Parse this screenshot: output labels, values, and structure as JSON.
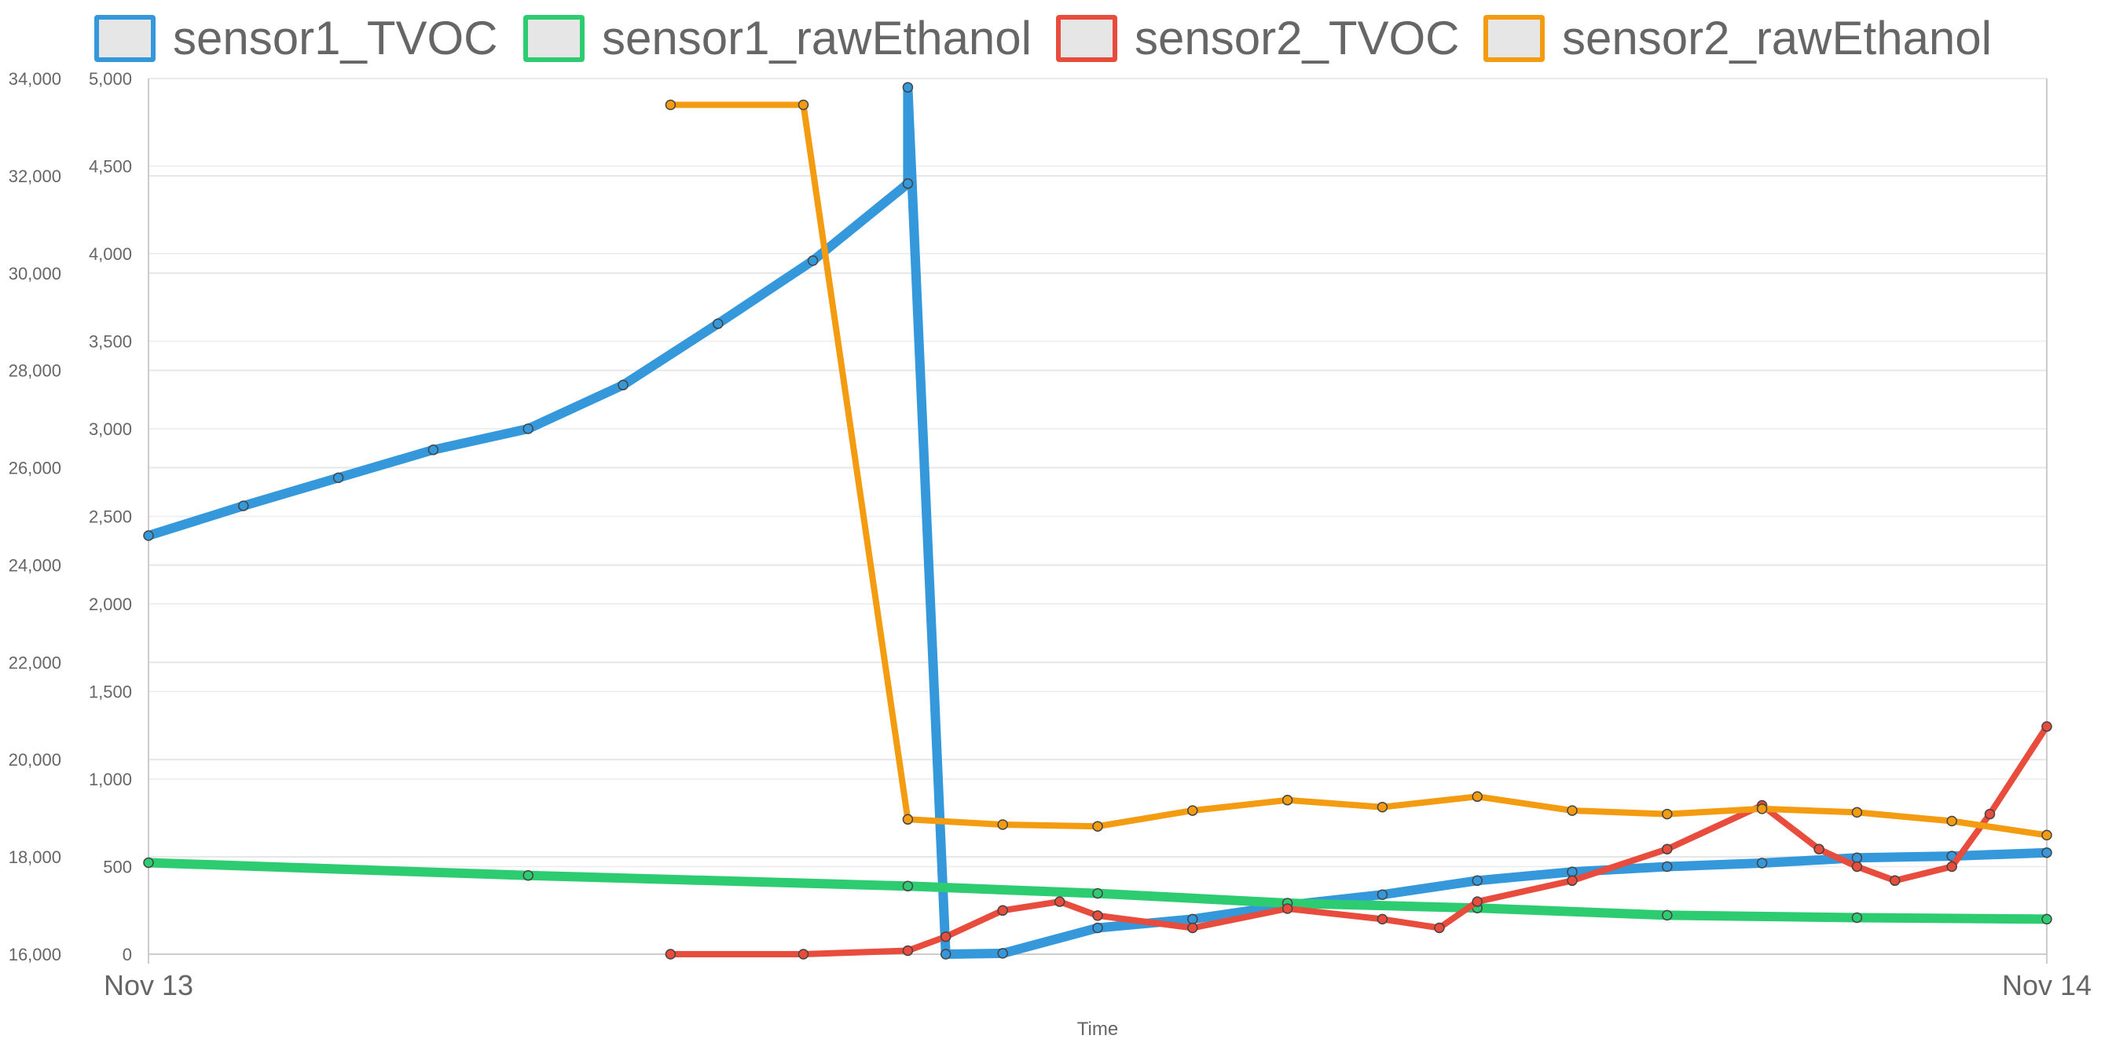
{
  "chart_data": {
    "type": "line",
    "legend_position": "top",
    "grid": true,
    "xlabel": "Time",
    "x_ticks": [
      "Nov 13",
      "Nov 14"
    ],
    "axes": {
      "left": {
        "min": 16000,
        "max": 34000,
        "ticks": [
          "16,000",
          "18,000",
          "20,000",
          "22,000",
          "24,000",
          "26,000",
          "28,000",
          "30,000",
          "32,000",
          "34,000"
        ]
      },
      "right": {
        "min": 0,
        "max": 5000,
        "ticks": [
          "0",
          "500",
          "1,000",
          "1,500",
          "2,000",
          "2,500",
          "3,000",
          "3,500",
          "4,000",
          "4,500",
          "5,000"
        ]
      }
    },
    "series": [
      {
        "name": "sensor1_TVOC",
        "color": "#3498db",
        "axis": "right",
        "x": [
          0,
          0.05,
          0.1,
          0.15,
          0.2,
          0.25,
          0.3,
          0.35,
          0.4,
          0.4,
          0.42,
          0.45,
          0.5,
          0.55,
          0.6,
          0.65,
          0.7,
          0.75,
          0.8,
          0.85,
          0.9,
          0.95,
          1.0
        ],
        "y": [
          2390,
          2560,
          2720,
          2880,
          3000,
          3250,
          3600,
          3960,
          4400,
          4950,
          0,
          5,
          150,
          200,
          280,
          340,
          420,
          470,
          500,
          520,
          550,
          560,
          580
        ]
      },
      {
        "name": "sensor1_rawEthanol",
        "color": "#2ecc71",
        "axis": "left",
        "x": [
          0,
          0.2,
          0.4,
          0.5,
          0.6,
          0.7,
          0.8,
          0.9,
          1.0
        ],
        "y": [
          17880,
          17620,
          17400,
          17250,
          17050,
          16950,
          16800,
          16750,
          16720
        ]
      },
      {
        "name": "sensor2_TVOC",
        "color": "#e74c3c",
        "axis": "right",
        "x": [
          0.275,
          0.345,
          0.4,
          0.42,
          0.45,
          0.48,
          0.5,
          0.55,
          0.6,
          0.65,
          0.68,
          0.7,
          0.75,
          0.8,
          0.85,
          0.88,
          0.9,
          0.92,
          0.95,
          0.97,
          1.0
        ],
        "y": [
          0,
          0,
          20,
          100,
          250,
          300,
          220,
          150,
          260,
          200,
          150,
          300,
          420,
          600,
          850,
          600,
          500,
          420,
          500,
          800,
          1300
        ]
      },
      {
        "name": "sensor2_rawEthanol",
        "color": "#f39c12",
        "axis": "right",
        "x": [
          0.275,
          0.345,
          0.4,
          0.45,
          0.5,
          0.55,
          0.6,
          0.65,
          0.7,
          0.75,
          0.8,
          0.85,
          0.9,
          0.95,
          1.0
        ],
        "y": [
          4850,
          4850,
          770,
          740,
          730,
          820,
          880,
          840,
          900,
          820,
          800,
          830,
          810,
          760,
          680
        ]
      }
    ]
  }
}
